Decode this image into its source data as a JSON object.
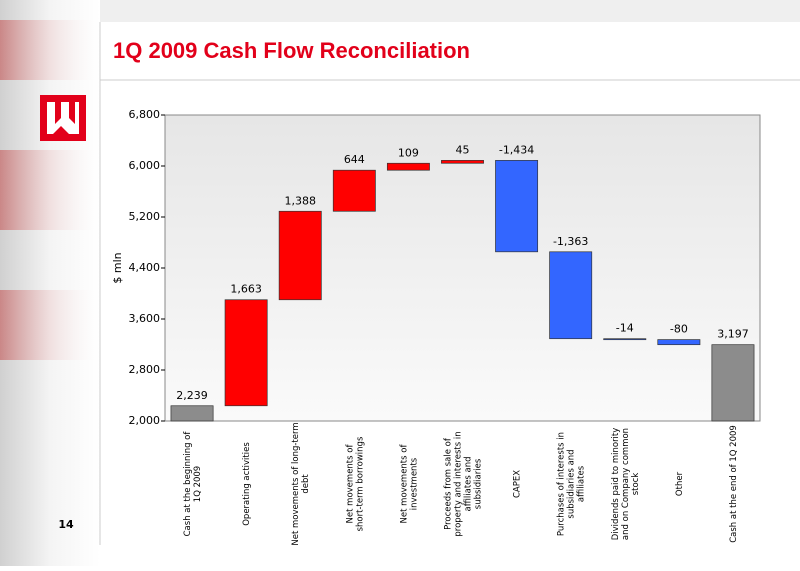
{
  "page_number": "14",
  "chart_data": {
    "type": "waterfall",
    "title": "1Q 2009 Cash Flow Reconciliation",
    "y_label": "$ mln",
    "categories": [
      "Cash at the beginning of 1Q 2009",
      "Operating activities",
      "Net movements of long-term debt",
      "Net movements of short-term borrowings",
      "Net movements of investments",
      "Proceeds from sale of property and interests in affiliates and subsidiaries",
      "CAPEX",
      "Purchases of interests in subsidiaries and affiliates",
      "Dividends paid to minority and on Company common stock",
      "Other",
      "Cash at the end of 1Q 2009"
    ],
    "values": [
      2239,
      1663,
      1388,
      644,
      109,
      45,
      -1434,
      -1363,
      -14,
      -80,
      3197
    ],
    "value_labels": [
      "2,239",
      "1,663",
      "1,388",
      "644",
      "109",
      "45",
      "-1,434",
      "-1,363",
      "-14",
      "-80",
      "3,197"
    ],
    "color_total": "#8c8c8c",
    "color_increase": "#ff0000",
    "color_decrease": "#3366ff",
    "ylim": [
      2000,
      6800
    ],
    "yticks": [
      {
        "value": 2000,
        "label": "2,000"
      },
      {
        "value": 2800,
        "label": "2,800"
      },
      {
        "value": 3600,
        "label": "3,600"
      },
      {
        "value": 4400,
        "label": "4,400"
      },
      {
        "value": 5200,
        "label": "5,200"
      },
      {
        "value": 6000,
        "label": "6,000"
      },
      {
        "value": 6800,
        "label": "6,800"
      }
    ]
  }
}
